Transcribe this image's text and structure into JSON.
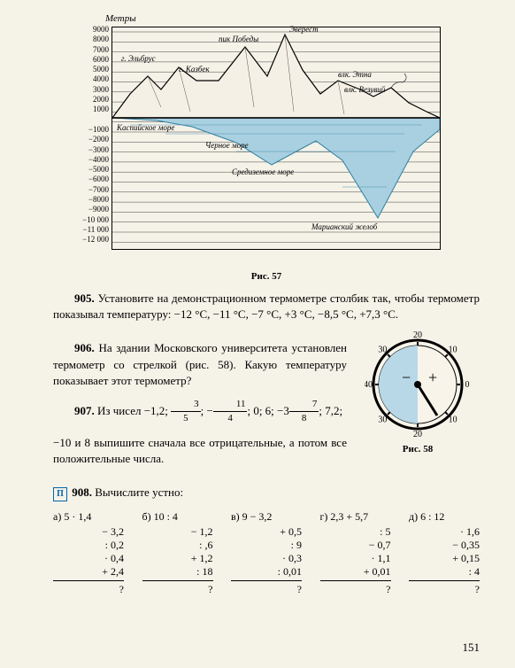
{
  "chart": {
    "y_axis_label": "Метры",
    "y_ticks": [
      "9000",
      "8000",
      "7000",
      "6000",
      "5000",
      "4000",
      "3000",
      "2000",
      "1000",
      "",
      "−1000",
      "−2000",
      "−3000",
      "−4000",
      "−5000",
      "−6000",
      "−7000",
      "−8000",
      "−9000",
      "−10 000",
      "−11 000",
      "−12 000"
    ],
    "labels": {
      "everest": "Эверест",
      "pobeda": "пик Победы",
      "elbrus": "г. Эльбрус",
      "kazbek": "г. Казбек",
      "etna": "влк. Этна",
      "vesuvius": "влк. Везувий",
      "caspian": "Каспийское море",
      "black": "Черное море",
      "mediterranean": "Средиземное море",
      "mariana": "Марианский желоб"
    },
    "colors": {
      "mountain_fill": "#f5f0e5",
      "mountain_stroke": "#000000",
      "water_fill": "#a8d0e0",
      "water_stroke": "#3080a0",
      "grid": "#444444"
    },
    "caption": "Рис. 57"
  },
  "p905": {
    "num": "905.",
    "text": "Установите на демонстрационном термометре столбик так, чтобы термометр показывал температуру: −12 °C, −11 °C, −7 °C, +3 °C, −8,5 °C, +7,3 °C."
  },
  "p906": {
    "num": "906.",
    "text": "На здании Московского университета установлен термометр со стрелкой (рис. 58). Какую температуру показывает этот термометр?"
  },
  "thermo": {
    "ticks": [
      "40",
      "30",
      "20",
      "10",
      "0",
      "10",
      "20",
      "30"
    ],
    "minus": "−",
    "plus": "+",
    "caption": "Рис. 58",
    "face_color": "#f8f4ea",
    "shade_color": "#b8d8e8"
  },
  "p907": {
    "num": "907.",
    "text_a": "Из чисел −1,2;  ",
    "frac1_n": "3",
    "frac1_d": "5",
    "text_b": ";  −",
    "frac2_n": "11",
    "frac2_d": "4",
    "text_c": ";  0; 6; −3",
    "frac3_n": "7",
    "frac3_d": "8",
    "text_d": "; 7,2;",
    "text_e": "−10 и 8 выпишите сначала все отрицательные, а потом все положительные числа."
  },
  "p908": {
    "num": "908.",
    "title": "Вычислите устно:",
    "cols": [
      {
        "hdr": "а) 5 · 1,4",
        "rows": [
          "− 3,2",
          ": 0,2",
          "· 0,4",
          "+ 2,4"
        ],
        "ans": "?"
      },
      {
        "hdr": "б) 10 : 4",
        "rows": [
          "− 1,2",
          ": ,6",
          "+ 1,2",
          ": 18"
        ],
        "ans": "?"
      },
      {
        "hdr": "в) 9 − 3,2",
        "rows": [
          "+ 0,5",
          ": 9",
          "· 0,3",
          ": 0,01"
        ],
        "ans": "?"
      },
      {
        "hdr": "г) 2,3 + 5,7",
        "rows": [
          ": 5",
          "− 0,7",
          "· 1,1",
          "+ 0,01"
        ],
        "ans": "?"
      },
      {
        "hdr": "д) 6 : 12",
        "rows": [
          "· 1,6",
          "− 0,35",
          "+ 0,15",
          ": 4"
        ],
        "ans": "?"
      }
    ]
  },
  "page_num": "151"
}
